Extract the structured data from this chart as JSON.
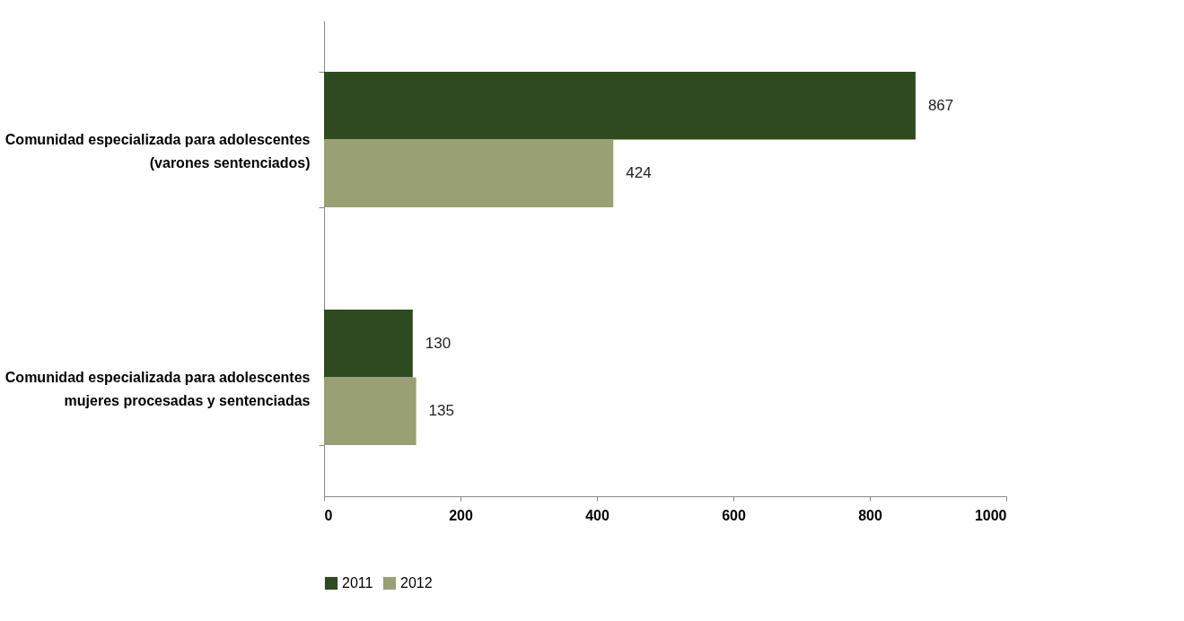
{
  "chart_data": {
    "type": "bar",
    "orientation": "horizontal",
    "categories": [
      "Comunidad especializada para adolescentes\n(varones sentenciados)",
      "Comunidad especializada para adolescentes\nmujeres procesadas y sentenciadas"
    ],
    "series": [
      {
        "name": "2011",
        "color": "#2e4a1e",
        "values": [
          867,
          130
        ]
      },
      {
        "name": "2012",
        "color": "#98a074",
        "values": [
          424,
          135
        ]
      }
    ],
    "xlim": [
      0,
      1000
    ],
    "xticks": [
      0,
      200,
      400,
      600,
      800,
      1000
    ],
    "data_labels": true,
    "grid": false,
    "legend": "bottom"
  }
}
